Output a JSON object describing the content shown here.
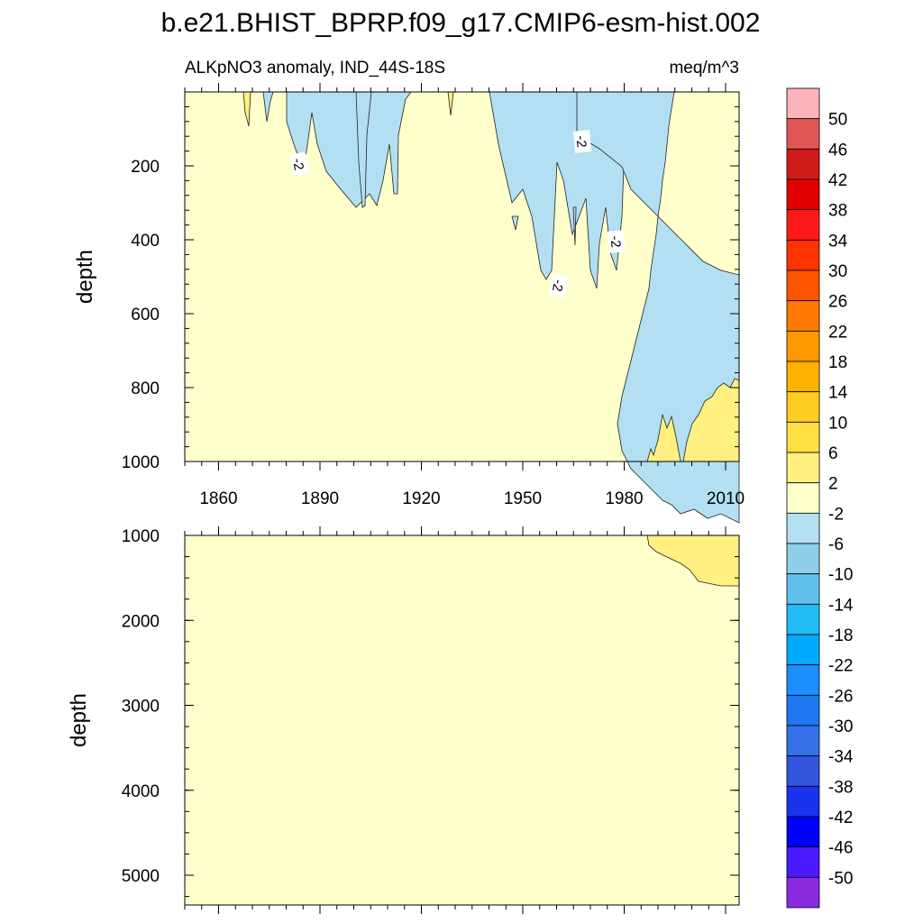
{
  "chart_data": {
    "type": "heatmap",
    "title": "b.e21.BHIST_BPRP.f09_g17.CMIP6-esm-hist.002",
    "subtitle_left": "ALKpNO3 anomaly, IND_44S-18S",
    "subtitle_right": "meq/m^3",
    "ylabel": "depth",
    "xlim": [
      1850,
      2014
    ],
    "x_ticks": [
      1860,
      1890,
      1920,
      1950,
      1980,
      2010
    ],
    "x_tick_labels": [
      "1860",
      "1890",
      "1920",
      "1950",
      "1980",
      "2010"
    ],
    "panels": [
      {
        "name": "upper",
        "ylim": [
          0,
          1000
        ],
        "y_ticks": [
          200,
          400,
          600,
          800,
          1000
        ],
        "y_tick_labels": [
          "200",
          "400",
          "600",
          "800",
          "1000"
        ],
        "contour_labels": [
          "-2",
          "-2",
          "-2",
          "-2"
        ]
      },
      {
        "name": "lower",
        "ylim": [
          1000,
          5350
        ],
        "y_ticks": [
          1000,
          2000,
          3000,
          4000,
          5000
        ],
        "y_tick_labels": [
          "1000",
          "2000",
          "3000",
          "4000",
          "5000"
        ],
        "contour_labels": []
      }
    ],
    "colorbar": {
      "levels": [
        "50",
        "46",
        "42",
        "38",
        "34",
        "30",
        "26",
        "22",
        "18",
        "14",
        "10",
        "6",
        "2",
        "-2",
        "-6",
        "-10",
        "-14",
        "-18",
        "-22",
        "-26",
        "-30",
        "-34",
        "-38",
        "-42",
        "-46",
        "-50"
      ],
      "colors": [
        "#fbb4b9",
        "#e25555",
        "#d01b1b",
        "#e00000",
        "#ff1a1a",
        "#ff3300",
        "#ff5500",
        "#ff7a00",
        "#ff9900",
        "#ffb300",
        "#ffcc22",
        "#ffe040",
        "#fff080",
        "#ffffcc",
        "#b3dff2",
        "#90cde9",
        "#5fc0ed",
        "#20bdf7",
        "#00aaff",
        "#1a8fff",
        "#1f77f2",
        "#3471e8",
        "#3355dd",
        "#1a33ee",
        "#0000ff",
        "#4b1aff",
        "#8a2be2"
      ]
    },
    "regions": [
      {
        "label": "background",
        "color": "#ffffcc"
      },
      {
        "label": "negative -6 to -2",
        "color": "#b3dff2"
      },
      {
        "label": "positive 2 to 6",
        "color": "#fff080"
      }
    ]
  }
}
